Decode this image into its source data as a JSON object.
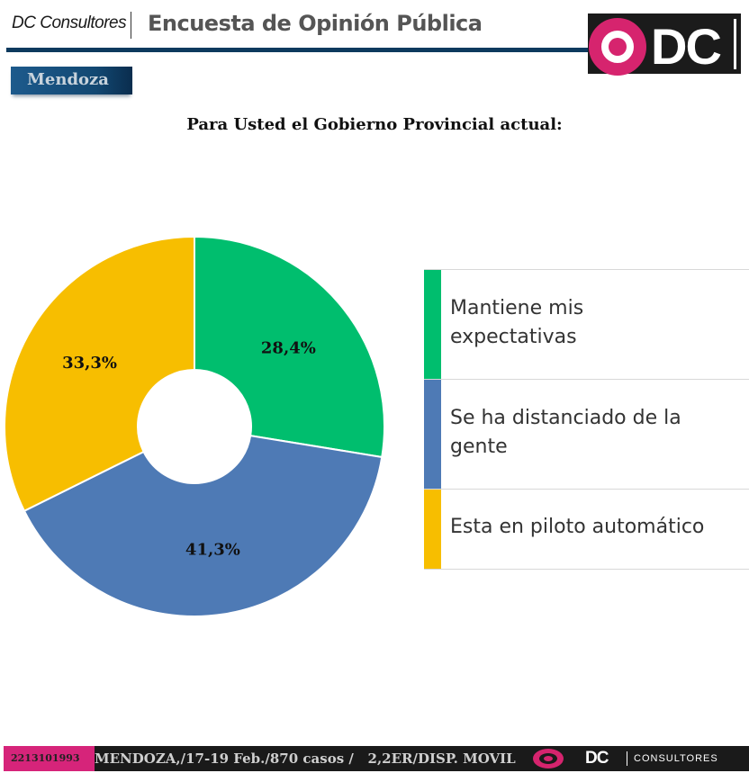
{
  "header": {
    "brand": "DC Consultores",
    "survey_title": "Encuesta de Opinión Pública",
    "logo_text": "DC",
    "region": "Mendoza"
  },
  "chart_data": {
    "type": "pie",
    "subtype": "donut",
    "title": "Para Usted el Gobierno Provincial actual:",
    "categories": [
      "Mantiene mis expectativas",
      "Se ha distanciado de la gente",
      "Esta en piloto automático"
    ],
    "values": [
      28.4,
      41.3,
      33.3
    ],
    "labels": [
      "28,4%",
      "41,3%",
      "33,3%"
    ],
    "colors": [
      "#00be6e",
      "#4e7ab5",
      "#f7be00"
    ],
    "legend_position": "right",
    "start": "12 o'clock, clockwise"
  },
  "legend": [
    {
      "line1": "Mantiene mis",
      "line2": "expectativas"
    },
    {
      "line1": "Se ha distanciado de la",
      "line2": "gente"
    },
    {
      "line1": "Esta en piloto automático",
      "line2": ""
    }
  ],
  "footer": {
    "id": "2213101993",
    "info": "MENDOZA,/17-19 Feb./870 casos /   2,2ER/DISP. MOVIL",
    "logo_dc": "DC",
    "logo_consultores": "CONSULTORES"
  }
}
